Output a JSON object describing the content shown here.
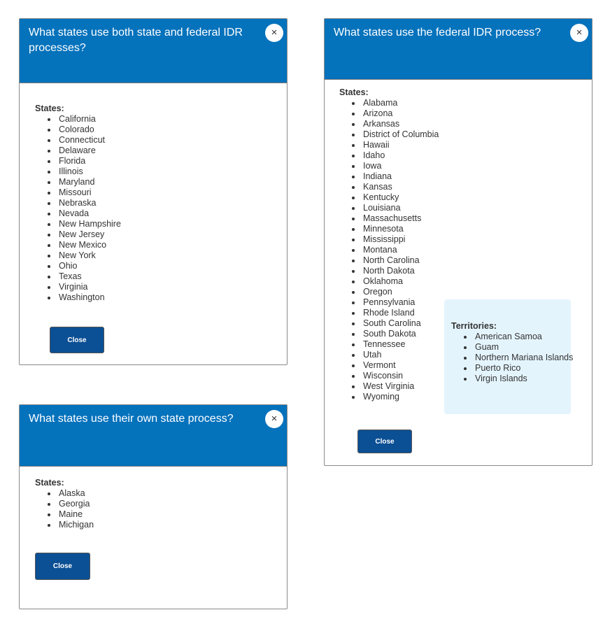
{
  "colors": {
    "header": "#0572bc",
    "button": "#0b4f94",
    "territory_bg": "#e4f4fd"
  },
  "modals": [
    {
      "title": "What states use both state and federal IDR processes?",
      "states_label": "States:",
      "states": [
        "California",
        "Colorado",
        "Connecticut",
        "Delaware",
        "Florida",
        "Illinois",
        "Maryland",
        "Missouri",
        "Nebraska",
        "Nevada",
        "New Hampshire",
        "New Jersey",
        "New Mexico",
        "New York",
        "Ohio",
        "Texas",
        "Virginia",
        "Washington"
      ],
      "close_label": "Close",
      "close_icon": "×"
    },
    {
      "title": "What states use their own state process?",
      "states_label": "States:",
      "states": [
        "Alaska",
        "Georgia",
        "Maine",
        "Michigan"
      ],
      "close_label": "Close",
      "close_icon": "×"
    },
    {
      "title": "What states use the federal IDR process?",
      "states_label": "States:",
      "states": [
        "Alabama",
        "Arizona",
        "Arkansas",
        "District of Columbia",
        "Hawaii",
        "Idaho",
        "Iowa",
        "Indiana",
        "Kansas",
        "Kentucky",
        "Louisiana",
        "Massachusetts",
        "Minnesota",
        "Mississippi",
        "Montana",
        "North Carolina",
        "North Dakota",
        "Oklahoma",
        "Oregon",
        "Pennsylvania",
        "Rhode Island",
        "South Carolina",
        "South Dakota",
        "Tennessee",
        "Utah",
        "Vermont",
        "Wisconsin",
        "West Virginia",
        "Wyoming"
      ],
      "territories_label": "Territories:",
      "territories": [
        "American Samoa",
        "Guam",
        "Northern Mariana Islands",
        "Puerto Rico",
        "Virgin Islands"
      ],
      "close_label": "Close",
      "close_icon": "×"
    }
  ]
}
